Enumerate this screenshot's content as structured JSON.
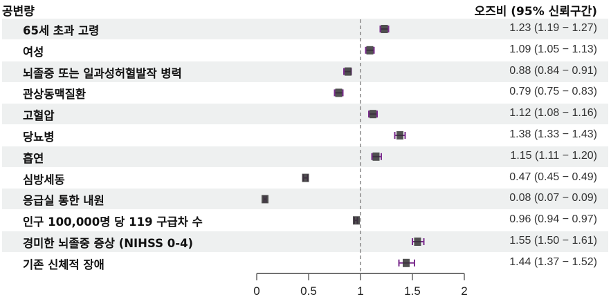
{
  "header": {
    "left_title": "공변량",
    "right_title": "오즈비 (95% 신뢰구간)"
  },
  "rows": [
    {
      "label": "65세 초과 고령",
      "ci_text": "1.23 (1.19 − 1.27)"
    },
    {
      "label": "여성",
      "ci_text": "1.09 (1.05 − 1.13)"
    },
    {
      "label": "뇌졸중 또는 일과성허혈발작 병력",
      "ci_text": "0.88 (0.84 − 0.91)"
    },
    {
      "label": "관상동맥질환",
      "ci_text": "0.79 (0.75 − 0.83)"
    },
    {
      "label": "고혈압",
      "ci_text": "1.12 (1.08 − 1.16)"
    },
    {
      "label": "당뇨병",
      "ci_text": "1.38 (1.33 − 1.43)"
    },
    {
      "label": "흡연",
      "ci_text": "1.15 (1.11 − 1.20)"
    },
    {
      "label": "심방세동",
      "ci_text": "0.47 (0.45 − 0.49)"
    },
    {
      "label": "응급실 통한 내원",
      "ci_text": "0.08 (0.07 − 0.09)"
    },
    {
      "label": "인구 100,000명 당 119 구급차 수",
      "ci_text": "0.96 (0.94 − 0.97)"
    },
    {
      "label": "경미한 뇌졸중 증상 (NIHSS 0-4)",
      "ci_text": "1.55 (1.50 − 1.61)"
    },
    {
      "label": "기존 신체적 장애",
      "ci_text": "1.44 (1.37 − 1.52)"
    }
  ],
  "axis": {
    "ticks": [
      "0",
      "0.5",
      "1",
      "1.5",
      "2"
    ]
  },
  "colors": {
    "shade": "#eef0f0",
    "point": "#333333",
    "ci": "#7b2d8e",
    "refline": "#888888"
  },
  "chart_data": {
    "type": "forest",
    "title": "",
    "left_header": "공변량",
    "right_header": "오즈비 (95% 신뢰구간)",
    "xlabel": "",
    "xlim": [
      0,
      2
    ],
    "xticks": [
      0,
      0.5,
      1,
      1.5,
      2
    ],
    "reference_line": 1,
    "categories": [
      "65세 초과 고령",
      "여성",
      "뇌졸중 또는 일과성허혈발작 병력",
      "관상동맥질환",
      "고혈압",
      "당뇨병",
      "흡연",
      "심방세동",
      "응급실 통한 내원",
      "인구 100,000명 당 119 구급차 수",
      "경미한 뇌졸중 증상 (NIHSS 0-4)",
      "기존 신체적 장애"
    ],
    "or": [
      1.23,
      1.09,
      0.88,
      0.79,
      1.12,
      1.38,
      1.15,
      0.47,
      0.08,
      0.96,
      1.55,
      1.44
    ],
    "ci_low": [
      1.19,
      1.05,
      0.84,
      0.75,
      1.08,
      1.33,
      1.11,
      0.45,
      0.07,
      0.94,
      1.5,
      1.37
    ],
    "ci_high": [
      1.27,
      1.13,
      0.91,
      0.83,
      1.16,
      1.43,
      1.2,
      0.49,
      0.09,
      0.97,
      1.61,
      1.52
    ]
  }
}
